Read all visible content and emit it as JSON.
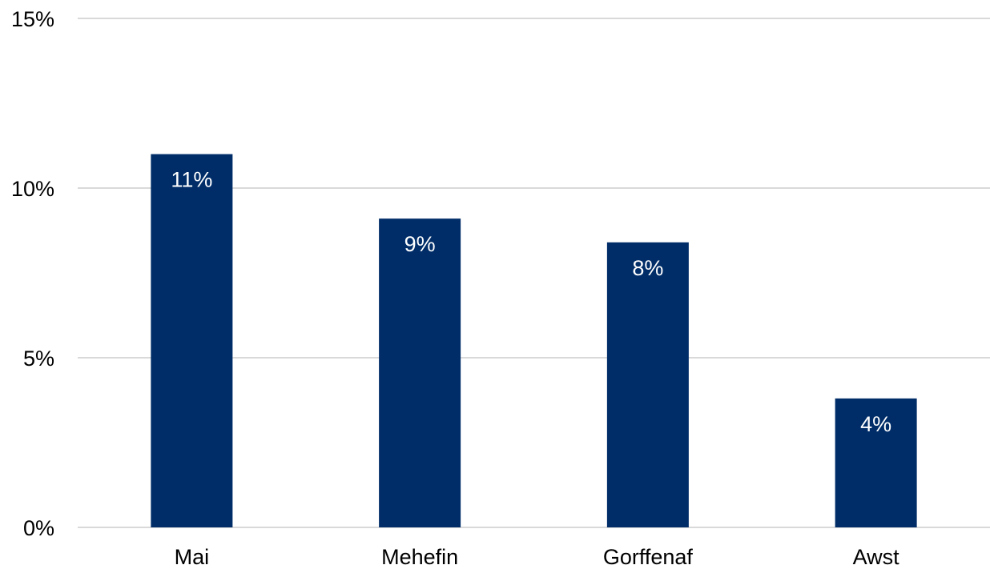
{
  "chart_data": {
    "type": "bar",
    "categories": [
      "Mai",
      "Mehefin",
      "Gorffenaf",
      "Awst"
    ],
    "values": [
      11.0,
      9.1,
      8.4,
      3.8
    ],
    "data_labels": [
      "11%",
      "9%",
      "8%",
      "4%"
    ],
    "ylim": [
      0,
      15
    ],
    "yticks": [
      0,
      5,
      10,
      15
    ],
    "ytick_labels": [
      "0%",
      "5%",
      "10%",
      "15%"
    ],
    "grid": true,
    "bar_color": "#002d68",
    "label_color": "#ffffff",
    "gridline_color": "#d9d9d9"
  }
}
